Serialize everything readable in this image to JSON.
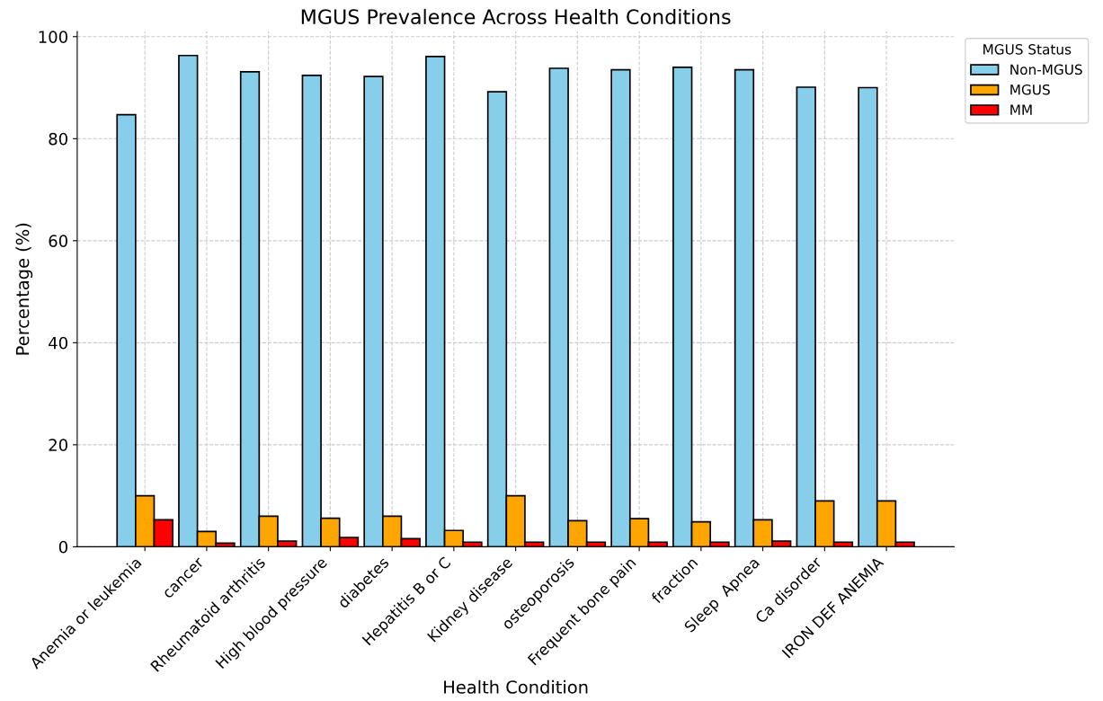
{
  "chart_data": {
    "type": "bar",
    "title": "MGUS Prevalence Across Health Conditions",
    "xlabel": "Health Condition",
    "ylabel": "Percentage (%)",
    "legend_title": "MGUS Status",
    "categories": [
      "Anemia or leukemia",
      "cancer",
      "Rheumatoid arthritis",
      "High blood pressure",
      "diabetes",
      "Hepatitis B or C",
      "Kidney disease",
      "osteoporosis",
      "Frequent bone pain",
      "fraction",
      "Sleep  Apnea",
      "Ca disorder",
      "IRON DEF ANEMIA"
    ],
    "series": [
      {
        "name": "Non-MGUS",
        "color": "#87ceeb",
        "values": [
          84.7,
          96.3,
          93.1,
          92.4,
          92.2,
          96.1,
          89.2,
          93.8,
          93.5,
          94.0,
          93.5,
          90.1,
          90.0
        ]
      },
      {
        "name": "MGUS",
        "color": "#ffa500",
        "values": [
          10.0,
          3.0,
          6.0,
          5.6,
          6.0,
          3.2,
          10.0,
          5.1,
          5.5,
          4.9,
          5.3,
          9.0,
          9.0
        ]
      },
      {
        "name": "MM",
        "color": "#ff0000",
        "values": [
          5.3,
          0.7,
          1.1,
          1.8,
          1.6,
          0.9,
          0.9,
          0.9,
          0.9,
          0.9,
          1.1,
          0.9,
          0.9
        ]
      }
    ],
    "ylim": [
      0,
      101
    ],
    "yticks": [
      0,
      20,
      40,
      60,
      80,
      100
    ],
    "grid": true,
    "legend": "top right"
  }
}
